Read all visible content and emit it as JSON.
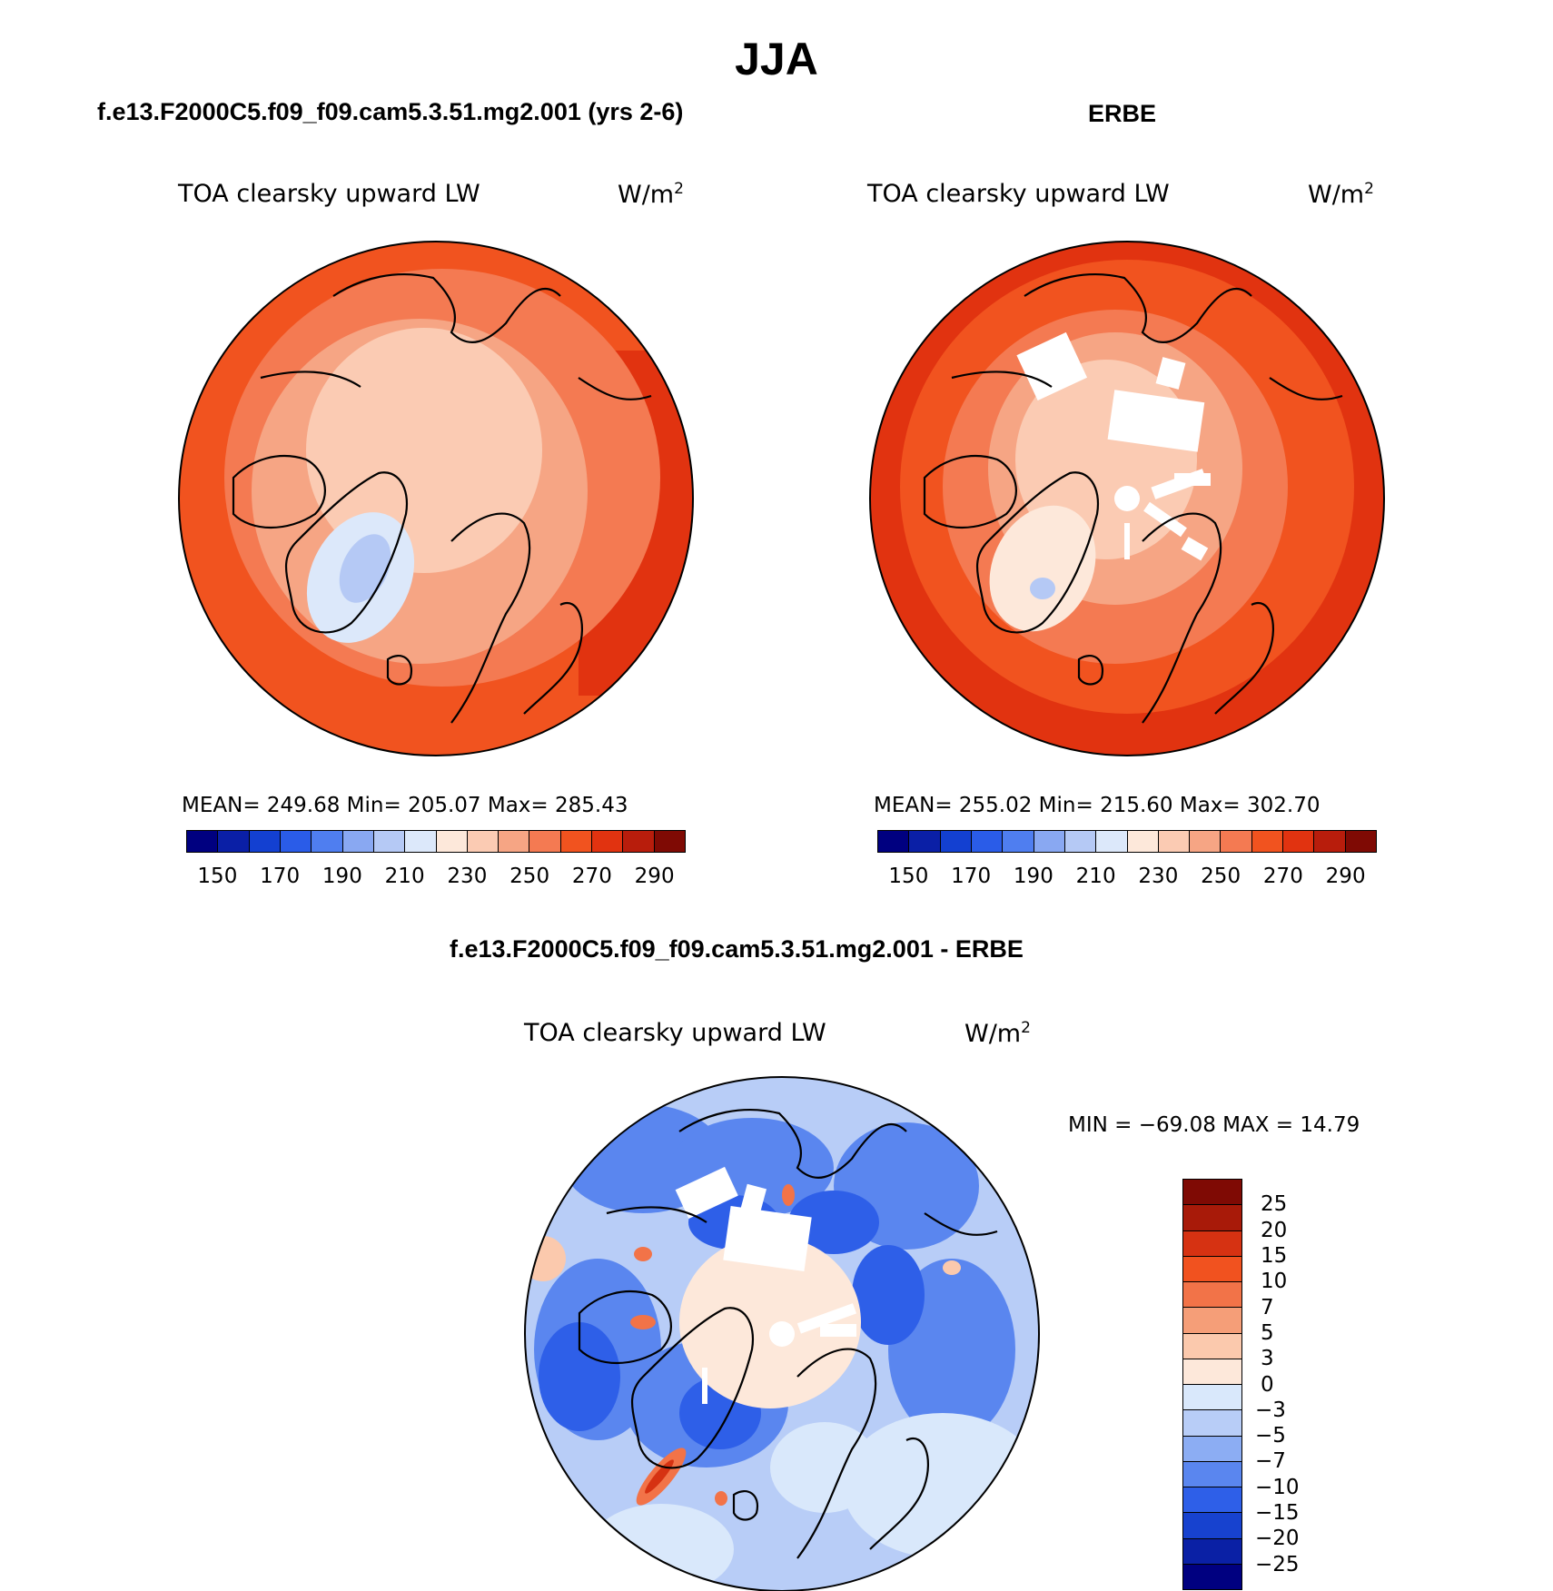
{
  "figure_title": "JJA",
  "colors": {
    "abs_levels": [
      "#000080",
      "#0a1fa6",
      "#1340d1",
      "#2a5ce8",
      "#4f7ef0",
      "#89a8f2",
      "#b5c9f5",
      "#dce8fa",
      "#fde8da",
      "#fbcbb3",
      "#f6a584",
      "#f47a52",
      "#f1531f",
      "#e13310",
      "#b81d0c",
      "#7f0a04"
    ],
    "diff_levels": [
      "#000080",
      "#0a20a5",
      "#1742cf",
      "#2e5fe8",
      "#5a86ef",
      "#8cadf3",
      "#b8cdf7",
      "#d9e8fb",
      "#fde8da",
      "#fbc9ad",
      "#f59e78",
      "#f27348",
      "#f1521f",
      "#d63212",
      "#a81a09",
      "#7f0a04"
    ],
    "coast": "#000000"
  },
  "panels": {
    "model": {
      "title": "f.e13.F2000C5.f09_f09.cam5.3.51.mg2.001 (yrs 2-6)",
      "subtitle": "TOA clearsky upward LW",
      "units": "W/m",
      "units_sup": "2",
      "stats": "MEAN= 249.68   Min= 205.07   Max= 285.43"
    },
    "obs": {
      "title": "ERBE",
      "subtitle": "TOA clearsky upward LW",
      "units": "W/m",
      "units_sup": "2",
      "stats": "MEAN= 255.02   Min= 215.60   Max= 302.70"
    },
    "diff": {
      "title": "f.e13.F2000C5.f09_f09.cam5.3.51.mg2.001 - ERBE",
      "subtitle": "TOA clearsky upward LW",
      "units": "W/m",
      "units_sup": "2",
      "minmax": "MIN = −69.08 MAX =   14.79"
    }
  },
  "chart_data": [
    {
      "type": "heatmap",
      "projection": "north polar stereographic",
      "title": "f.e13.F2000C5.f09_f09.cam5.3.51.mg2.001 (yrs 2-6)",
      "subtitle": "TOA clearsky upward LW",
      "units": "W/m2",
      "mean": 249.68,
      "min": 205.07,
      "max": 285.43,
      "contour_levels": [
        150,
        160,
        170,
        180,
        190,
        200,
        210,
        220,
        230,
        240,
        250,
        260,
        270,
        280,
        290
      ],
      "colorbar_tick_labels": [
        "150",
        "170",
        "190",
        "210",
        "230",
        "250",
        "270",
        "290"
      ]
    },
    {
      "type": "heatmap",
      "projection": "north polar stereographic",
      "title": "ERBE",
      "subtitle": "TOA clearsky upward LW",
      "units": "W/m2",
      "mean": 255.02,
      "min": 215.6,
      "max": 302.7,
      "contour_levels": [
        150,
        160,
        170,
        180,
        190,
        200,
        210,
        220,
        230,
        240,
        250,
        260,
        270,
        280,
        290
      ],
      "colorbar_tick_labels": [
        "150",
        "170",
        "190",
        "210",
        "230",
        "250",
        "270",
        "290"
      ]
    },
    {
      "type": "heatmap",
      "projection": "north polar stereographic",
      "title": "f.e13.F2000C5.f09_f09.cam5.3.51.mg2.001 - ERBE",
      "subtitle": "TOA clearsky upward LW",
      "units": "W/m2",
      "min": -69.08,
      "max": 14.79,
      "contour_levels": [
        -25,
        -20,
        -15,
        -10,
        -7,
        -5,
        -3,
        0,
        3,
        5,
        7,
        10,
        15,
        20,
        25
      ],
      "colorbar_tick_labels": [
        "25",
        "20",
        "15",
        "10",
        "7",
        "5",
        "3",
        "0",
        "−3",
        "−5",
        "−7",
        "−10",
        "−15",
        "−20",
        "−25"
      ]
    }
  ]
}
